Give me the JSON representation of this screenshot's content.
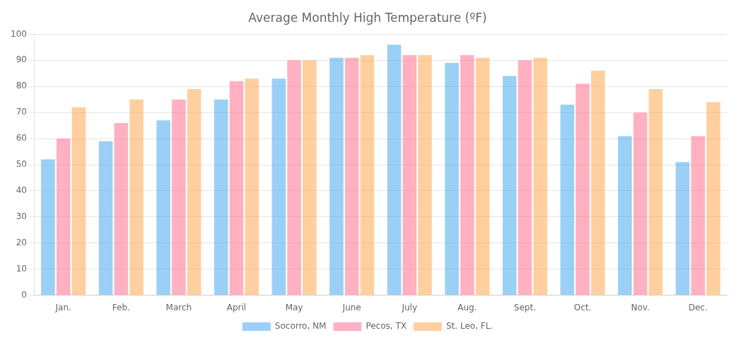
{
  "chart_data": {
    "type": "bar",
    "title": "Average Monthly High Temperature (ºF)",
    "categories": [
      "Jan.",
      "Feb.",
      "March",
      "April",
      "May",
      "June",
      "July",
      "Aug.",
      "Sept.",
      "Oct.",
      "Nov.",
      "Dec."
    ],
    "series": [
      {
        "name": "Socorro, NM",
        "values": [
          52,
          59,
          67,
          75,
          83,
          91,
          96,
          89,
          84,
          73,
          61,
          51
        ]
      },
      {
        "name": "Pecos, TX",
        "values": [
          60,
          66,
          75,
          82,
          90,
          91,
          92,
          92,
          90,
          81,
          70,
          61
        ]
      },
      {
        "name": "St. Leo, FL.",
        "values": [
          72,
          75,
          79,
          83,
          90,
          92,
          92,
          91,
          91,
          86,
          79,
          74
        ]
      }
    ],
    "ylim": [
      0,
      100
    ],
    "yticks": [
      0,
      10,
      20,
      30,
      40,
      50,
      60,
      70,
      80,
      90,
      100
    ],
    "grid": true,
    "legend": "bottom"
  }
}
